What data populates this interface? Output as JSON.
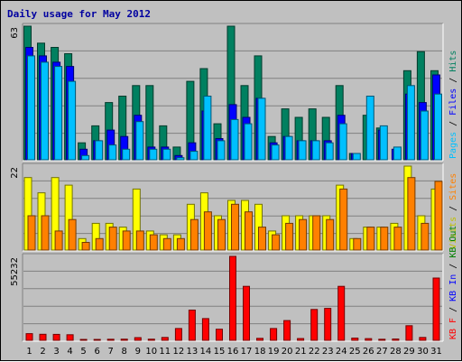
{
  "chart_data": {
    "type": "bar",
    "title": "Daily usage for May 2012",
    "background": "#c0c0c0",
    "categories": [
      "1",
      "2",
      "3",
      "4",
      "5",
      "6",
      "7",
      "8",
      "9",
      "10",
      "11",
      "12",
      "13",
      "14",
      "15",
      "16",
      "17",
      "18",
      "19",
      "20",
      "21",
      "22",
      "23",
      "24",
      "25",
      "26",
      "27",
      "28",
      "29",
      "30",
      "31"
    ],
    "weekend_days": [
      "5",
      "6",
      "12",
      "13",
      "19",
      "20",
      "26",
      "27"
    ],
    "colors": {
      "weekday_label": "#000000",
      "weekend_label": "#008000"
    },
    "panels": [
      {
        "name": "hits-files-pages",
        "y_max_label": "63",
        "ylim": [
          0,
          63
        ],
        "side_legend": [
          {
            "text": "Pages",
            "color": "#00c0ff"
          },
          {
            "text": " / ",
            "color": "#000000"
          },
          {
            "text": "Files",
            "color": "#0000ff"
          },
          {
            "text": " / ",
            "color": "#000000"
          },
          {
            "text": "Hits",
            "color": "#008060"
          }
        ],
        "series": [
          {
            "name": "Hits",
            "color": "#008060",
            "values": [
              63,
              55,
              53,
              50,
              8,
              16,
              27,
              30,
              35,
              35,
              16,
              6,
              37,
              43,
              17,
              63,
              35,
              49,
              11,
              24,
              20,
              24,
              20,
              35,
              3,
              21,
              15,
              0,
              42,
              51,
              42
            ]
          },
          {
            "name": "Files",
            "color": "#0000ff",
            "values": [
              53,
              49,
              46,
              44,
              5,
              9,
              14,
              11,
              21,
              6,
              6,
              2,
              8,
              23,
              10,
              26,
              20,
              29,
              8,
              11,
              9,
              9,
              9,
              21,
              3,
              0,
              14,
              5,
              31,
              27,
              40
            ]
          },
          {
            "name": "Pages",
            "color": "#00c0ff",
            "values": [
              49,
              46,
              44,
              37,
              2,
              9,
              7,
              5,
              18,
              5,
              5,
              1,
              4,
              30,
              9,
              19,
              17,
              29,
              7,
              11,
              9,
              9,
              8,
              17,
              3,
              30,
              16,
              6,
              35,
              23,
              31
            ]
          }
        ]
      },
      {
        "name": "visits-sites",
        "y_max_label": "22",
        "ylim": [
          0,
          22
        ],
        "side_legend": [
          {
            "text": "Visits",
            "color": "#c0c000"
          },
          {
            "text": " / ",
            "color": "#000000"
          },
          {
            "text": "Sites",
            "color": "#ff8000"
          }
        ],
        "series": [
          {
            "name": "Visits",
            "color": "#ffff00",
            "values": [
              19,
              15,
              19,
              17,
              3,
              7,
              7,
              6,
              16,
              5,
              4,
              4,
              12,
              15,
              9,
              13,
              13,
              12,
              5,
              9,
              9,
              9,
              9,
              17,
              3,
              6,
              6,
              7,
              22,
              9,
              16
            ]
          },
          {
            "name": "Sites",
            "color": "#ff8000",
            "values": [
              9,
              9,
              5,
              8,
              2,
              3,
              6,
              5,
              5,
              4,
              3,
              3,
              8,
              10,
              8,
              12,
              10,
              6,
              4,
              7,
              8,
              9,
              8,
              16,
              3,
              6,
              6,
              6,
              19,
              7,
              18
            ]
          }
        ]
      },
      {
        "name": "kbytes",
        "y_max_label": "55232",
        "ylim": [
          0,
          55232
        ],
        "side_legend": [
          {
            "text": "KB F",
            "color": "#ff0000"
          },
          {
            "text": " / ",
            "color": "#000000"
          },
          {
            "text": "KB In",
            "color": "#0000ff"
          },
          {
            "text": " / ",
            "color": "#000000"
          },
          {
            "text": "KB Out",
            "color": "#008000"
          }
        ],
        "series": [
          {
            "name": "KB F",
            "color": "#ff0000",
            "values": [
              4400,
              4000,
              3900,
              3700,
              600,
              600,
              700,
              800,
              1800,
              800,
              1900,
              7800,
              19900,
              14300,
              7300,
              55232,
              35500,
              1300,
              7800,
              13000,
              1200,
              20300,
              21000,
              35500,
              1500,
              1100,
              700,
              900,
              9600,
              1900,
              41000
            ]
          }
        ]
      }
    ]
  }
}
